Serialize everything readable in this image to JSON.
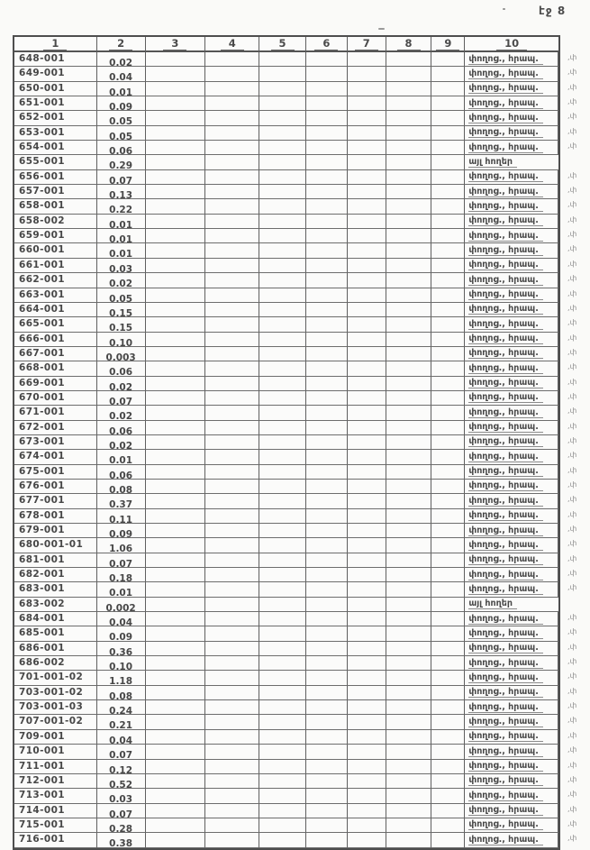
{
  "page_label": "էջ 8",
  "table": {
    "headers": [
      "1",
      "2",
      "3",
      "4",
      "5",
      "6",
      "7",
      "8",
      "9",
      "10"
    ],
    "usage_street": "փողոց., հրապ.",
    "usage_other": "այլ հողեր",
    "rows": [
      {
        "code": "648-001",
        "value": "0.02",
        "usage": "փողոց., հրապ.",
        "edge_mark": ",փ"
      },
      {
        "code": "649-001",
        "value": "0.04",
        "usage": "փողոց., հրապ.",
        "edge_mark": ",փ"
      },
      {
        "code": "650-001",
        "value": "0.01",
        "usage": "փողոց., հրապ.",
        "edge_mark": ",փ"
      },
      {
        "code": "651-001",
        "value": "0.09",
        "usage": "փողոց., հրապ.",
        "edge_mark": ",փ"
      },
      {
        "code": "652-001",
        "value": "0.05",
        "usage": "փողոց., հրապ.",
        "edge_mark": ",փ"
      },
      {
        "code": "653-001",
        "value": "0.05",
        "usage": "փողոց., հրապ.",
        "edge_mark": ",փ"
      },
      {
        "code": "654-001",
        "value": "0.06",
        "usage": "փողոց., հրապ.",
        "edge_mark": ",փ"
      },
      {
        "code": "655-001",
        "value": "0.29",
        "usage": "այլ հողեր",
        "edge_mark": ""
      },
      {
        "code": "656-001",
        "value": "0.07",
        "usage": "փողոց., հրապ.",
        "edge_mark": ",փ"
      },
      {
        "code": "657-001",
        "value": "0.13",
        "usage": "փողոց., հրապ.",
        "edge_mark": ",փ"
      },
      {
        "code": "658-001",
        "value": "0.22",
        "usage": "փողոց., հրապ.",
        "edge_mark": ",փ"
      },
      {
        "code": "658-002",
        "value": "0.01",
        "usage": "փողոց., հրապ.",
        "edge_mark": ",փ"
      },
      {
        "code": "659-001",
        "value": "0.01",
        "usage": "փողոց., հրապ.",
        "edge_mark": ",փ"
      },
      {
        "code": "660-001",
        "value": "0.01",
        "usage": "փողոց., հրապ.",
        "edge_mark": ",փ"
      },
      {
        "code": "661-001",
        "value": "0.03",
        "usage": "փողոց., հրապ.",
        "edge_mark": ",փ"
      },
      {
        "code": "662-001",
        "value": "0.02",
        "usage": "փողոց., հրապ.",
        "edge_mark": ",փ"
      },
      {
        "code": "663-001",
        "value": "0.05",
        "usage": "փողոց., հրապ.",
        "edge_mark": ",փ"
      },
      {
        "code": "664-001",
        "value": "0.15",
        "usage": "փողոց., հրապ.",
        "edge_mark": ",փ"
      },
      {
        "code": "665-001",
        "value": "0.15",
        "usage": "փողոց., հրապ.",
        "edge_mark": ",փ"
      },
      {
        "code": "666-001",
        "value": "0.10",
        "usage": "փողոց., հրապ.",
        "edge_mark": ",փ"
      },
      {
        "code": "667-001",
        "value": "0.003",
        "usage": "փողոց., հրապ.",
        "edge_mark": ",փ"
      },
      {
        "code": "668-001",
        "value": "0.06",
        "usage": "փողոց., հրապ.",
        "edge_mark": ",փ"
      },
      {
        "code": "669-001",
        "value": "0.02",
        "usage": "փողոց., հրապ.",
        "edge_mark": ",փ"
      },
      {
        "code": "670-001",
        "value": "0.07",
        "usage": "փողոց., հրապ.",
        "edge_mark": ",փ"
      },
      {
        "code": "671-001",
        "value": "0.02",
        "usage": "փողոց., հրապ.",
        "edge_mark": ",փ"
      },
      {
        "code": "672-001",
        "value": "0.06",
        "usage": "փողոց., հրապ.",
        "edge_mark": ",փ"
      },
      {
        "code": "673-001",
        "value": "0.02",
        "usage": "փողոց., հրապ.",
        "edge_mark": ",փ"
      },
      {
        "code": "674-001",
        "value": "0.01",
        "usage": "փողոց., հրապ.",
        "edge_mark": ",փ"
      },
      {
        "code": "675-001",
        "value": "0.06",
        "usage": "փողոց., հրապ.",
        "edge_mark": ",փ"
      },
      {
        "code": "676-001",
        "value": "0.08",
        "usage": "փողոց., հրապ.",
        "edge_mark": ",փ"
      },
      {
        "code": "677-001",
        "value": "0.37",
        "usage": "փողոց., հրապ.",
        "edge_mark": ",փ"
      },
      {
        "code": "678-001",
        "value": "0.11",
        "usage": "փողոց., հրապ.",
        "edge_mark": ",փ"
      },
      {
        "code": "679-001",
        "value": "0.09",
        "usage": "փողոց., հրապ.",
        "edge_mark": ",փ"
      },
      {
        "code": "680-001-01",
        "value": "1.06",
        "usage": "փողոց., հրապ.",
        "edge_mark": ",փ"
      },
      {
        "code": "681-001",
        "value": "0.07",
        "usage": "փողոց., հրապ.",
        "edge_mark": ",փ"
      },
      {
        "code": "682-001",
        "value": "0.18",
        "usage": "փողոց., հրապ.",
        "edge_mark": ",փ"
      },
      {
        "code": "683-001",
        "value": "0.01",
        "usage": "փողոց., հրապ.",
        "edge_mark": ",փ"
      },
      {
        "code": "683-002",
        "value": "0.002",
        "usage": "այլ հողեր",
        "edge_mark": ""
      },
      {
        "code": "684-001",
        "value": "0.04",
        "usage": "փողոց., հրապ.",
        "edge_mark": ",փ"
      },
      {
        "code": "685-001",
        "value": "0.09",
        "usage": "փողոց., հրապ.",
        "edge_mark": ",փ"
      },
      {
        "code": "686-001",
        "value": "0.36",
        "usage": "փողոց., հրապ.",
        "edge_mark": ",փ"
      },
      {
        "code": "686-002",
        "value": "0.10",
        "usage": "փողոց., հրապ.",
        "edge_mark": ",փ"
      },
      {
        "code": "701-001-02",
        "value": "1.18",
        "usage": "փողոց., հրապ.",
        "edge_mark": ",փ"
      },
      {
        "code": "703-001-02",
        "value": "0.08",
        "usage": "փողոց., հրապ.",
        "edge_mark": ",փ"
      },
      {
        "code": "703-001-03",
        "value": "0.24",
        "usage": "փողոց., հրապ.",
        "edge_mark": ",փ"
      },
      {
        "code": "707-001-02",
        "value": "0.21",
        "usage": "փողոց., հրապ.",
        "edge_mark": ",փ"
      },
      {
        "code": "709-001",
        "value": "0.04",
        "usage": "փողոց., հրապ.",
        "edge_mark": ",փ"
      },
      {
        "code": "710-001",
        "value": "0.07",
        "usage": "փողոց., հրապ.",
        "edge_mark": ",փ"
      },
      {
        "code": "711-001",
        "value": "0.12",
        "usage": "փողոց., հրապ.",
        "edge_mark": ",փ"
      },
      {
        "code": "712-001",
        "value": "0.52",
        "usage": "փողոց., հրապ.",
        "edge_mark": ",փ"
      },
      {
        "code": "713-001",
        "value": "0.03",
        "usage": "փողոց., հրապ.",
        "edge_mark": ",փ"
      },
      {
        "code": "714-001",
        "value": "0.07",
        "usage": "փողոց., հրապ.",
        "edge_mark": ",փ"
      },
      {
        "code": "715-001",
        "value": "0.28",
        "usage": "փողոց., հրապ.",
        "edge_mark": ",փ"
      },
      {
        "code": "716-001",
        "value": "0.38",
        "usage": "փողոց., հրապ.",
        "edge_mark": ",փ"
      }
    ]
  }
}
